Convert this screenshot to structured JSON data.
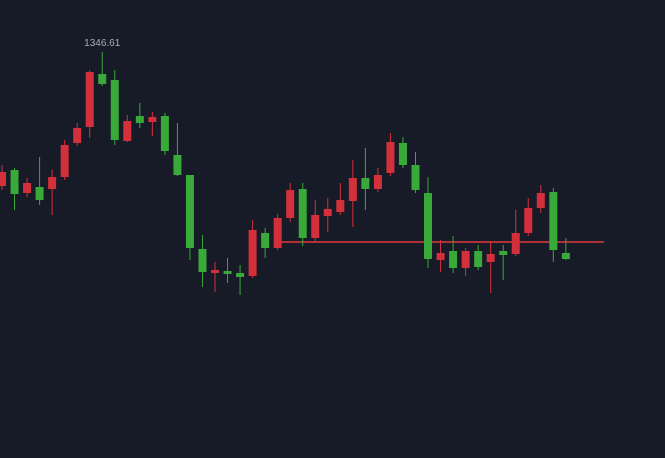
{
  "chart_data": {
    "type": "candlestick",
    "ylim": [
      1266.41,
      1357.01
    ],
    "up_color": "#d4303b",
    "down_color": "#39a93a",
    "price_line_color": "#e03a3e",
    "open": [
      1319.81,
      1323.01,
      1318.41,
      1319.61,
      1319.21,
      1321.61,
      1328.41,
      1331.61,
      1342.21,
      1341.01,
      1328.81,
      1333.81,
      1332.61,
      1333.81,
      1326.01,
      1322.01,
      1307.21,
      1302.41,
      1302.81,
      1302.41,
      1301.81,
      1310.41,
      1307.41,
      1313.41,
      1319.21,
      1309.41,
      1313.81,
      1314.61,
      1316.81,
      1321.41,
      1319.21,
      1322.41,
      1328.41,
      1324.01,
      1318.41,
      1305.01,
      1306.81,
      1303.41,
      1306.81,
      1304.61,
      1306.81,
      1306.21,
      1310.41,
      1315.41,
      1318.61,
      1306.41
    ],
    "high": [
      1324.01,
      1323.41,
      1321.41,
      1325.61,
      1323.01,
      1329.01,
      1332.41,
      1343.01,
      1346.61,
      1343.01,
      1334.01,
      1336.41,
      1334.61,
      1334.41,
      1332.41,
      1322.01,
      1310.01,
      1304.61,
      1305.41,
      1304.01,
      1313.01,
      1311.41,
      1314.21,
      1320.41,
      1320.41,
      1317.01,
      1317.41,
      1320.41,
      1325.01,
      1327.41,
      1323.41,
      1330.41,
      1329.61,
      1326.61,
      1321.61,
      1309.01,
      1309.81,
      1307.41,
      1308.01,
      1308.61,
      1308.01,
      1315.01,
      1317.41,
      1320.01,
      1319.41,
      1309.41
    ],
    "low": [
      1319.01,
      1315.01,
      1317.61,
      1316.01,
      1314.01,
      1321.01,
      1327.81,
      1329.41,
      1339.81,
      1328.01,
      1328.61,
      1331.41,
      1329.81,
      1326.01,
      1321.81,
      1305.01,
      1299.61,
      1298.61,
      1300.41,
      1298.01,
      1301.41,
      1305.41,
      1307.01,
      1312.61,
      1307.81,
      1308.81,
      1310.61,
      1314.01,
      1311.61,
      1315.01,
      1318.61,
      1321.81,
      1323.41,
      1318.41,
      1303.41,
      1302.61,
      1302.41,
      1301.81,
      1303.01,
      1298.41,
      1301.01,
      1305.81,
      1309.81,
      1314.41,
      1304.61,
      1305.01
    ],
    "close": [
      1322.61,
      1318.21,
      1320.41,
      1317.01,
      1321.61,
      1328.01,
      1331.41,
      1342.61,
      1340.21,
      1329.01,
      1332.81,
      1332.41,
      1333.61,
      1326.81,
      1322.01,
      1307.41,
      1302.61,
      1303.01,
      1302.21,
      1301.61,
      1311.01,
      1307.41,
      1313.41,
      1319.01,
      1309.41,
      1314.01,
      1315.21,
      1317.01,
      1321.41,
      1319.21,
      1322.01,
      1328.61,
      1324.01,
      1319.01,
      1305.21,
      1306.41,
      1303.41,
      1306.81,
      1303.61,
      1306.21,
      1306.01,
      1310.41,
      1315.41,
      1318.41,
      1307.01,
      1305.21
    ],
    "price_line": 1308.61
  }
}
